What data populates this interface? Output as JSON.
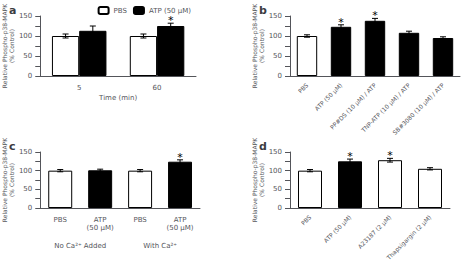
{
  "chart_data": [
    {
      "type": "bar",
      "title": "a",
      "xlabel": "Time (min)",
      "ylabel": "Relative Phospho-p38-MAPK\n(% Control)",
      "categories": [
        "5",
        "60"
      ],
      "series": [
        {
          "name": "PBS",
          "color": "white",
          "values": [
            100,
            100
          ],
          "errors": [
            5,
            5
          ],
          "annotations": [
            null,
            null
          ]
        },
        {
          "name": "ATP (50 μM)",
          "color": "black",
          "values": [
            113,
            125
          ],
          "errors": [
            12,
            7
          ],
          "annotations": [
            null,
            "*"
          ]
        }
      ],
      "ylim": [
        0,
        150
      ],
      "yticks": [
        0,
        {
          "value": 25,
          "label": ""
        },
        50,
        {
          "value": 75,
          "label": ""
        },
        100,
        {
          "value": 125,
          "label": ""
        },
        150
      ],
      "grid": false,
      "legend": "upper right"
    },
    {
      "type": "bar",
      "title": "b",
      "ylabel": "Relative Phospho-p38-MAPK\n(% Control)",
      "categories": [
        "PBS",
        "ATP (50 μM)",
        "PP#DS (10 μM) / ATP",
        "TNP-ATP (10 μM) / ATP",
        "SB#3080 (10 μM) / ATP"
      ],
      "values": [
        100,
        123,
        138,
        108,
        95
      ],
      "errors": [
        3,
        5,
        6,
        4,
        3
      ],
      "colors": [
        "white",
        "black",
        "black",
        "black",
        "black"
      ],
      "annotations": [
        null,
        "*",
        "*",
        null,
        null
      ],
      "ylim": [
        0,
        150
      ],
      "yticks": [
        0,
        {
          "value": 25,
          "label": ""
        },
        50,
        {
          "value": 75,
          "label": ""
        },
        100,
        {
          "value": 125,
          "label": ""
        },
        150
      ],
      "grid": false
    },
    {
      "type": "bar",
      "title": "c",
      "ylabel": "Relative Phospho-p38-MAPK\n(% Control)",
      "categories": [
        "PBS",
        "ATP\n(50 μM)",
        "PBS",
        "ATP\n(50 μM)"
      ],
      "group_labels": [
        "No Ca²⁺ Added",
        "With Ca²⁺"
      ],
      "values": [
        100,
        101,
        100,
        124
      ],
      "errors": [
        3,
        3,
        3,
        5
      ],
      "colors": [
        "white",
        "black",
        "white",
        "black"
      ],
      "annotations": [
        null,
        null,
        null,
        "*"
      ],
      "ylim": [
        0,
        150
      ],
      "yticks": [
        0,
        {
          "value": 25,
          "label": ""
        },
        50,
        {
          "value": 75,
          "label": ""
        },
        100,
        {
          "value": 125,
          "label": ""
        },
        150
      ],
      "grid": false
    },
    {
      "type": "bar",
      "title": "d",
      "ylabel": "Relative Phospho-p38-MAPK\n(% Control)",
      "categories": [
        "PBS",
        "ATP (50 μM)",
        "A23187 (2 μM)",
        "Thapsigargin (2 μM)"
      ],
      "values": [
        100,
        125,
        128,
        105
      ],
      "errors": [
        3,
        6,
        5,
        3
      ],
      "colors": [
        "white",
        "black",
        "white",
        "white"
      ],
      "annotations": [
        null,
        "*",
        "*",
        null
      ],
      "ylim": [
        0,
        150
      ],
      "yticks": [
        0,
        {
          "value": 25,
          "label": ""
        },
        50,
        {
          "value": 75,
          "label": ""
        },
        100,
        {
          "value": 125,
          "label": ""
        },
        150
      ],
      "grid": false
    }
  ]
}
